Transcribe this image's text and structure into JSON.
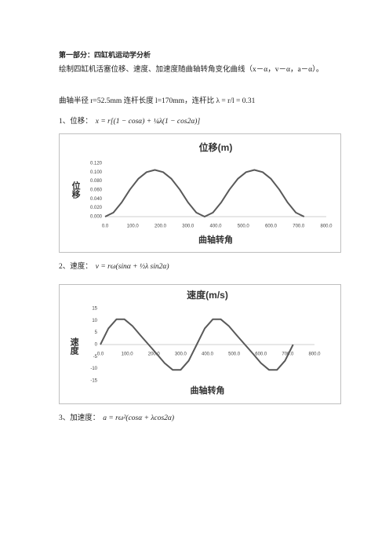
{
  "document": {
    "heading": "第一部分：四缸机运动学分析",
    "intro": "绘制四缸机活塞位移、速度、加速度随曲轴转角变化曲线（x－α，v－α，a－α）。",
    "params": "曲轴半径 r=52.5mm 连杆长度 l=170mm，连杆比 λ = r/l = 0.31",
    "item1": "1、位移：",
    "formula1": "x = r[(1 − cosα) + ¼λ(1 − cos2α)]",
    "item2": "2、速度：",
    "formula2": "v = rω(sinα + ½λ sin2α)",
    "item3": "3、加速度：",
    "formula3": "a = rω²(cosα + λcos2α)"
  },
  "chart_data": [
    {
      "type": "line",
      "title": "位移(m)",
      "x_label": "曲轴转角",
      "y_label": "位移",
      "x": [
        0,
        30,
        60,
        90,
        120,
        150,
        180,
        210,
        240,
        270,
        300,
        330,
        360,
        390,
        420,
        450,
        480,
        510,
        540,
        570,
        600,
        630,
        660,
        690,
        720
      ],
      "series": [
        {
          "color": "#595959",
          "values": [
            0,
            0.009,
            0.032,
            0.061,
            0.085,
            0.1,
            0.105,
            0.1,
            0.085,
            0.061,
            0.032,
            0.009,
            0,
            0.009,
            0.032,
            0.061,
            0.085,
            0.1,
            0.105,
            0.1,
            0.085,
            0.061,
            0.032,
            0.009,
            0
          ]
        }
      ],
      "xlim": [
        0,
        800
      ],
      "xticks": [
        {
          "value": 0,
          "label": "0.0"
        },
        {
          "value": 100,
          "label": "100.0"
        },
        {
          "value": 200,
          "label": "200.0"
        },
        {
          "value": 300,
          "label": "300.0"
        },
        {
          "value": 400,
          "label": "400.0"
        },
        {
          "value": 500,
          "label": "500.0"
        },
        {
          "value": 600,
          "label": "600.0"
        },
        {
          "value": 700,
          "label": "700.0"
        },
        {
          "value": 800,
          "label": "800.0"
        }
      ],
      "ylim": [
        0,
        0.12
      ],
      "yticks": [
        {
          "value": 0,
          "label": "0.000"
        },
        {
          "value": 0.02,
          "label": "0.020"
        },
        {
          "value": 0.04,
          "label": "0.040"
        },
        {
          "value": 0.06,
          "label": "0.060"
        },
        {
          "value": 0.08,
          "label": "0.080"
        },
        {
          "value": 0.1,
          "label": "0.100"
        },
        {
          "value": 0.12,
          "label": "0.120"
        }
      ]
    },
    {
      "type": "line",
      "title": "速度(m/s)",
      "x_label": "曲轴转角",
      "y_label": "速度",
      "x": [
        0,
        30,
        60,
        90,
        120,
        150,
        180,
        210,
        240,
        270,
        300,
        330,
        360,
        390,
        420,
        450,
        480,
        510,
        540,
        570,
        600,
        630,
        660,
        690,
        720
      ],
      "series": [
        {
          "color": "#595959",
          "values": [
            0,
            6.7,
            10.5,
            10.5,
            7.7,
            3.8,
            0,
            -3.8,
            -7.7,
            -10.5,
            -10.5,
            -6.7,
            0,
            6.7,
            10.5,
            10.5,
            7.7,
            3.8,
            0,
            -3.8,
            -7.7,
            -10.5,
            -10.5,
            -6.7,
            0
          ]
        }
      ],
      "xlim": [
        0,
        800
      ],
      "xticks": [
        {
          "value": 0,
          "label": "0.0"
        },
        {
          "value": 100,
          "label": "100.0"
        },
        {
          "value": 200,
          "label": "200.0"
        },
        {
          "value": 300,
          "label": "300.0"
        },
        {
          "value": 400,
          "label": "400.0"
        },
        {
          "value": 500,
          "label": "500.0"
        },
        {
          "value": 600,
          "label": "600.0"
        },
        {
          "value": 700,
          "label": "700.0"
        },
        {
          "value": 800,
          "label": "800.0"
        }
      ],
      "ylim": [
        -15,
        15
      ],
      "yticks": [
        -15,
        -10,
        -5,
        0,
        5,
        10,
        15
      ]
    }
  ]
}
